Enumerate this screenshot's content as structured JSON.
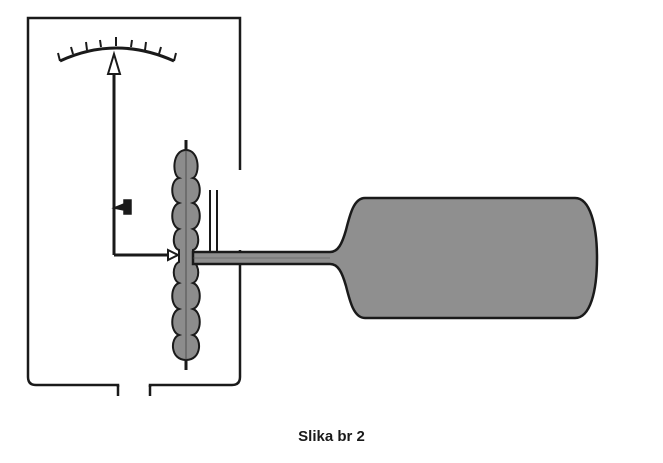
{
  "caption": "Slika br 2",
  "colors": {
    "stroke": "#1a1a1a",
    "bulb_fill": "#8c8c8c",
    "tank_fill": "#8f8f8f",
    "background": "#ffffff"
  }
}
